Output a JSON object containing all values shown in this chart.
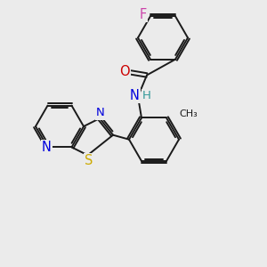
{
  "background_color": "#ebebeb",
  "bond_color": "#1a1a1a",
  "atom_colors": {
    "F": "#cc44aa",
    "O": "#cc0000",
    "N": "#0000dd",
    "S": "#ccaa00",
    "H": "#339999",
    "C": "#1a1a1a"
  },
  "lw": 1.4,
  "fs": 9.5
}
